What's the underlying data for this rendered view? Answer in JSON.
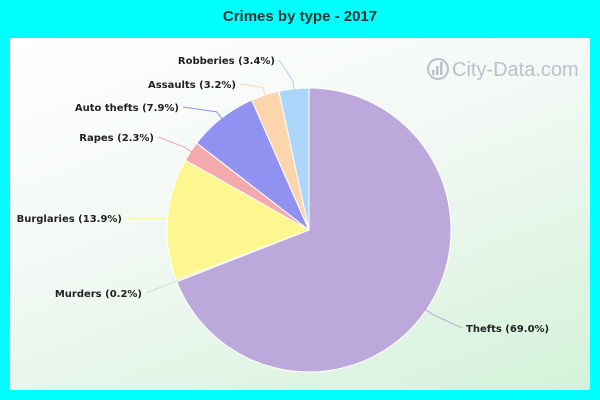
{
  "watermark": "City-Data.com",
  "chart_data": {
    "type": "pie",
    "title": "Crimes by type - 2017",
    "slices": [
      {
        "label": "Thefts (69.0%)",
        "value": 69.0,
        "color": "#bca8da"
      },
      {
        "label": "Murders (0.2%)",
        "value": 0.2,
        "color": "#c8e7c2"
      },
      {
        "label": "Burglaries (13.9%)",
        "value": 13.9,
        "color": "#fef78f"
      },
      {
        "label": "Rapes (2.3%)",
        "value": 2.3,
        "color": "#f4a9ad"
      },
      {
        "label": "Auto thefts (7.9%)",
        "value": 7.9,
        "color": "#9191f1"
      },
      {
        "label": "Assaults (3.2%)",
        "value": 3.2,
        "color": "#fdd5ad"
      },
      {
        "label": "Robberies (3.4%)",
        "value": 3.4,
        "color": "#aed5fb"
      }
    ]
  }
}
